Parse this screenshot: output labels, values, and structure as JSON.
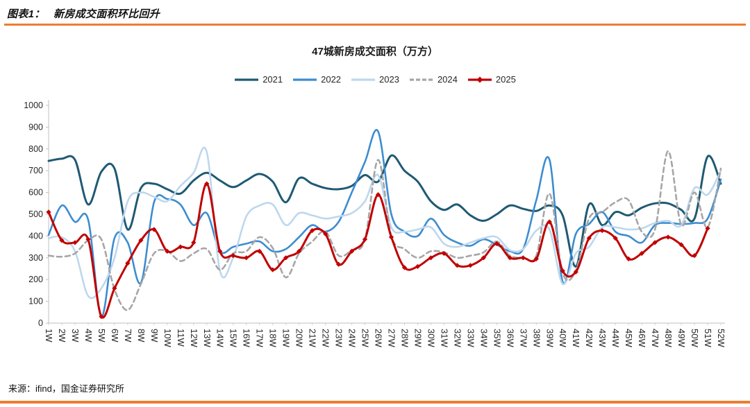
{
  "header": {
    "label": "图表1：",
    "title": "新房成交面积环比回升"
  },
  "footer": {
    "source": "来源：ifind，国金证券研究所"
  },
  "colors": {
    "accent_orange": "#ED7D31",
    "axis": "#BFBFBF",
    "text": "#262626"
  },
  "chart_data": {
    "type": "line",
    "title": "47城新房成交面积（万方）",
    "xlabel": "",
    "ylabel": "",
    "ylim": [
      0,
      1000
    ],
    "y_ticks": [
      0,
      100,
      200,
      300,
      400,
      500,
      600,
      700,
      800,
      900,
      1000
    ],
    "grid": false,
    "legend_position": "top",
    "x_labels": [
      "1W",
      "2W",
      "3W",
      "4W",
      "5W",
      "6W",
      "7W",
      "8W",
      "9W",
      "10W",
      "11W",
      "12W",
      "13W",
      "14W",
      "15W",
      "16W",
      "17W",
      "18W",
      "19W",
      "20W",
      "21W",
      "22W",
      "23W",
      "24W",
      "25W",
      "26W",
      "27W",
      "28W",
      "29W",
      "30W",
      "31W",
      "32W",
      "33W",
      "34W",
      "35W",
      "36W",
      "37W",
      "38W",
      "39W",
      "40W",
      "41W",
      "42W",
      "43W",
      "44W",
      "45W",
      "46W",
      "47W",
      "48W",
      "49W",
      "50W",
      "51W",
      "52W"
    ],
    "series": [
      {
        "name": "2021",
        "color": "#1E5A74",
        "style": "solid",
        "width": 3,
        "marker": "none",
        "values": [
          745,
          755,
          750,
          545,
          695,
          710,
          430,
          620,
          640,
          615,
          595,
          655,
          690,
          655,
          625,
          655,
          685,
          650,
          555,
          665,
          640,
          620,
          615,
          630,
          680,
          650,
          770,
          700,
          650,
          560,
          520,
          545,
          495,
          470,
          500,
          540,
          525,
          515,
          540,
          495,
          260,
          545,
          450,
          510,
          495,
          530,
          550,
          550,
          520,
          480,
          765,
          640
        ]
      },
      {
        "name": "2022",
        "color": "#3C8CD0",
        "style": "solid",
        "width": 2.6,
        "marker": "none",
        "values": [
          405,
          540,
          465,
          475,
          30,
          390,
          370,
          185,
          555,
          570,
          545,
          450,
          505,
          330,
          350,
          365,
          375,
          330,
          340,
          395,
          450,
          420,
          465,
          600,
          740,
          880,
          500,
          420,
          400,
          480,
          405,
          370,
          355,
          385,
          360,
          330,
          340,
          565,
          750,
          190,
          410,
          455,
          510,
          420,
          400,
          370,
          450,
          460,
          455,
          460,
          480,
          660
        ]
      },
      {
        "name": "2023",
        "color": "#BDD7EE",
        "style": "solid",
        "width": 2.6,
        "marker": "none",
        "values": [
          390,
          395,
          330,
          125,
          160,
          300,
          560,
          600,
          580,
          560,
          630,
          690,
          785,
          240,
          300,
          490,
          540,
          545,
          450,
          505,
          495,
          480,
          490,
          505,
          560,
          680,
          440,
          420,
          430,
          440,
          365,
          350,
          370,
          390,
          395,
          335,
          340,
          425,
          430,
          180,
          320,
          350,
          440,
          440,
          430,
          435,
          460,
          470,
          450,
          620,
          590,
          700
        ]
      },
      {
        "name": "2024",
        "color": "#A6A6A6",
        "style": "dashed",
        "width": 2.6,
        "marker": "none",
        "values": [
          310,
          305,
          320,
          380,
          385,
          155,
          60,
          180,
          320,
          330,
          285,
          320,
          340,
          245,
          320,
          330,
          395,
          345,
          210,
          320,
          375,
          420,
          310,
          335,
          385,
          750,
          400,
          340,
          300,
          330,
          325,
          300,
          310,
          325,
          375,
          310,
          300,
          310,
          595,
          230,
          240,
          480,
          510,
          555,
          565,
          420,
          430,
          790,
          450,
          600,
          440,
          710
        ]
      },
      {
        "name": "2025",
        "color": "#C00000",
        "style": "solid",
        "width": 3,
        "marker": "diamond",
        "values": [
          510,
          380,
          370,
          385,
          30,
          160,
          275,
          380,
          430,
          330,
          350,
          370,
          640,
          330,
          310,
          300,
          330,
          245,
          300,
          330,
          425,
          410,
          270,
          330,
          385,
          590,
          395,
          255,
          260,
          300,
          320,
          265,
          265,
          300,
          365,
          300,
          300,
          295,
          465,
          240,
          235,
          390,
          425,
          390,
          295,
          320,
          370,
          395,
          360,
          310,
          435,
          null
        ]
      }
    ]
  }
}
